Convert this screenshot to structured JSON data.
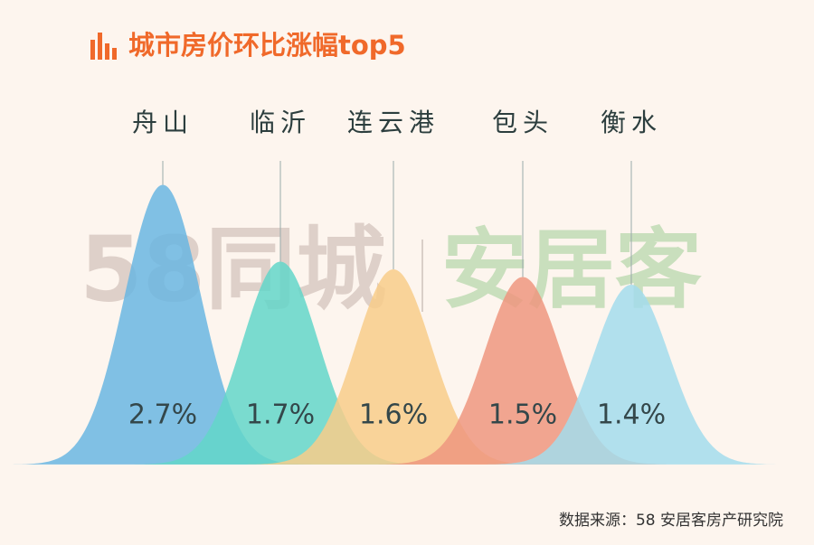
{
  "chart_data": {
    "type": "bell",
    "title": "城市房价环比涨幅top5",
    "categories": [
      "舟山",
      "临沂",
      "连云港",
      "包头",
      "衡水"
    ],
    "values": [
      2.7,
      1.7,
      1.6,
      1.5,
      1.4
    ],
    "value_labels": [
      "2.7%",
      "1.7%",
      "1.6%",
      "1.5%",
      "1.4%"
    ],
    "colors": [
      "#6ab6e2",
      "#63d6c9",
      "#f8cd8a",
      "#ef967f",
      "#a3dcec"
    ],
    "watermark": [
      "58同城",
      "安居客"
    ],
    "source": "数据来源：58 安居客房产研究院"
  }
}
